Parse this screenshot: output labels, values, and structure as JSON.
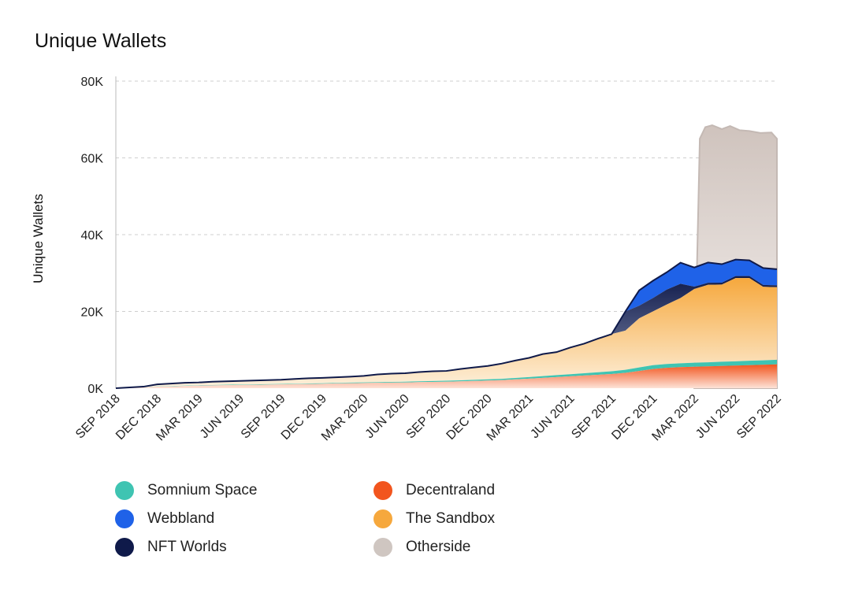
{
  "chart_data": {
    "type": "area",
    "title": "Unique Wallets",
    "xlabel": "",
    "ylabel": "Unique Wallets",
    "ylim": [
      0,
      80000
    ],
    "y_ticks": [
      0,
      20000,
      40000,
      60000,
      80000
    ],
    "y_tick_labels": [
      "0K",
      "20K",
      "40K",
      "60K",
      "80K"
    ],
    "grid": "horizontal dashed",
    "x_tick_labels": [
      "SEP 2018",
      "DEC 2018",
      "MAR 2019",
      "JUN 2019",
      "SEP 2019",
      "DEC 2019",
      "MAR 2020",
      "JUN 2020",
      "SEP 2020",
      "DEC 2020",
      "MAR 2021",
      "JUN 2021",
      "SEP 2021",
      "DEC 2021",
      "MAR 2022",
      "JUN 2022",
      "SEP 2022"
    ],
    "x_months": [
      0,
      1,
      2,
      3,
      4,
      5,
      6,
      7,
      8,
      9,
      10,
      11,
      12,
      13,
      14,
      15,
      16,
      17,
      18,
      19,
      20,
      21,
      22,
      23,
      24,
      25,
      26,
      27,
      28,
      29,
      30,
      31,
      32,
      33,
      34,
      35,
      36,
      37,
      38,
      39,
      40,
      41,
      42,
      43,
      44,
      45,
      46,
      47,
      48
    ],
    "x_note": "months since SEP 2018",
    "stack_order": [
      "Decentraland",
      "Somnium Space",
      "The Sandbox",
      "NFT Worlds",
      "Webbland"
    ],
    "series": [
      {
        "name": "Decentraland",
        "color": "#f2551e",
        "values": [
          0,
          100,
          200,
          400,
          500,
          600,
          700,
          750,
          800,
          850,
          900,
          950,
          1000,
          1050,
          1100,
          1150,
          1250,
          1300,
          1350,
          1400,
          1450,
          1500,
          1600,
          1650,
          1700,
          1800,
          1900,
          2000,
          2100,
          2300,
          2500,
          2700,
          2900,
          3100,
          3300,
          3500,
          3700,
          4000,
          4500,
          5000,
          5300,
          5500,
          5600,
          5700,
          5800,
          5900,
          6000,
          6100,
          6200
        ]
      },
      {
        "name": "Somnium Space",
        "color": "#3fc4b2",
        "values": [
          0,
          20,
          30,
          50,
          60,
          70,
          80,
          80,
          90,
          90,
          100,
          100,
          100,
          110,
          120,
          130,
          140,
          150,
          160,
          170,
          180,
          190,
          200,
          220,
          240,
          260,
          280,
          300,
          330,
          360,
          400,
          450,
          500,
          550,
          600,
          650,
          700,
          800,
          900,
          1000,
          1000,
          1000,
          1050,
          1050,
          1100,
          1100,
          1150,
          1150,
          1200
        ]
      },
      {
        "name": "The Sandbox",
        "color": "#f6a83d",
        "values": [
          0,
          80,
          170,
          550,
          640,
          730,
          720,
          870,
          910,
          960,
          1000,
          1050,
          1100,
          1240,
          1380,
          1420,
          1460,
          1550,
          1690,
          2030,
          2170,
          2210,
          2400,
          2530,
          2560,
          2940,
          3220,
          3500,
          3970,
          4540,
          5000,
          5750,
          6000,
          6950,
          7700,
          8750,
          9700,
          10200,
          12800,
          14000,
          15500,
          17000,
          19200,
          20200,
          20100,
          21700,
          21550,
          19150,
          18900
        ]
      },
      {
        "name": "NFT Worlds",
        "color": "#0f1a4a",
        "values": [
          0,
          0,
          0,
          0,
          0,
          0,
          0,
          0,
          0,
          0,
          0,
          0,
          0,
          0,
          0,
          0,
          0,
          0,
          0,
          0,
          0,
          0,
          0,
          0,
          0,
          0,
          0,
          0,
          0,
          0,
          0,
          0,
          0,
          0,
          0,
          0,
          0,
          5000,
          3300,
          3500,
          3900,
          3700,
          600,
          500,
          500,
          500,
          500,
          500,
          500
        ]
      },
      {
        "name": "Webbland",
        "color": "#1f62e8",
        "values": [
          0,
          0,
          0,
          0,
          0,
          0,
          0,
          0,
          0,
          0,
          0,
          0,
          0,
          0,
          0,
          0,
          0,
          0,
          0,
          0,
          0,
          0,
          0,
          0,
          0,
          0,
          0,
          0,
          0,
          0,
          0,
          0,
          0,
          0,
          0,
          0,
          0,
          0,
          4000,
          4500,
          4500,
          5500,
          5000,
          5300,
          4800,
          4300,
          4100,
          4400,
          4200
        ]
      },
      {
        "name": "Otherside",
        "color": "#cfc6c1",
        "overlay": true,
        "x": [
          42.0,
          42.4,
          42.8,
          43.3,
          44.0,
          44.6,
          45.3,
          46.0,
          46.8,
          47.6,
          48.0
        ],
        "values": [
          0,
          65000,
          68000,
          68500,
          67500,
          68300,
          67200,
          67000,
          66500,
          66600,
          65000
        ]
      }
    ]
  },
  "legend": {
    "items": [
      {
        "label": "Somnium Space",
        "color": "#3fc4b2"
      },
      {
        "label": "Decentraland",
        "color": "#f2551e"
      },
      {
        "label": "Webbland",
        "color": "#1f62e8"
      },
      {
        "label": "The Sandbox",
        "color": "#f6a83d"
      },
      {
        "label": "NFT Worlds",
        "color": "#0f1a4a"
      },
      {
        "label": "Otherside",
        "color": "#cfc6c1"
      }
    ]
  }
}
